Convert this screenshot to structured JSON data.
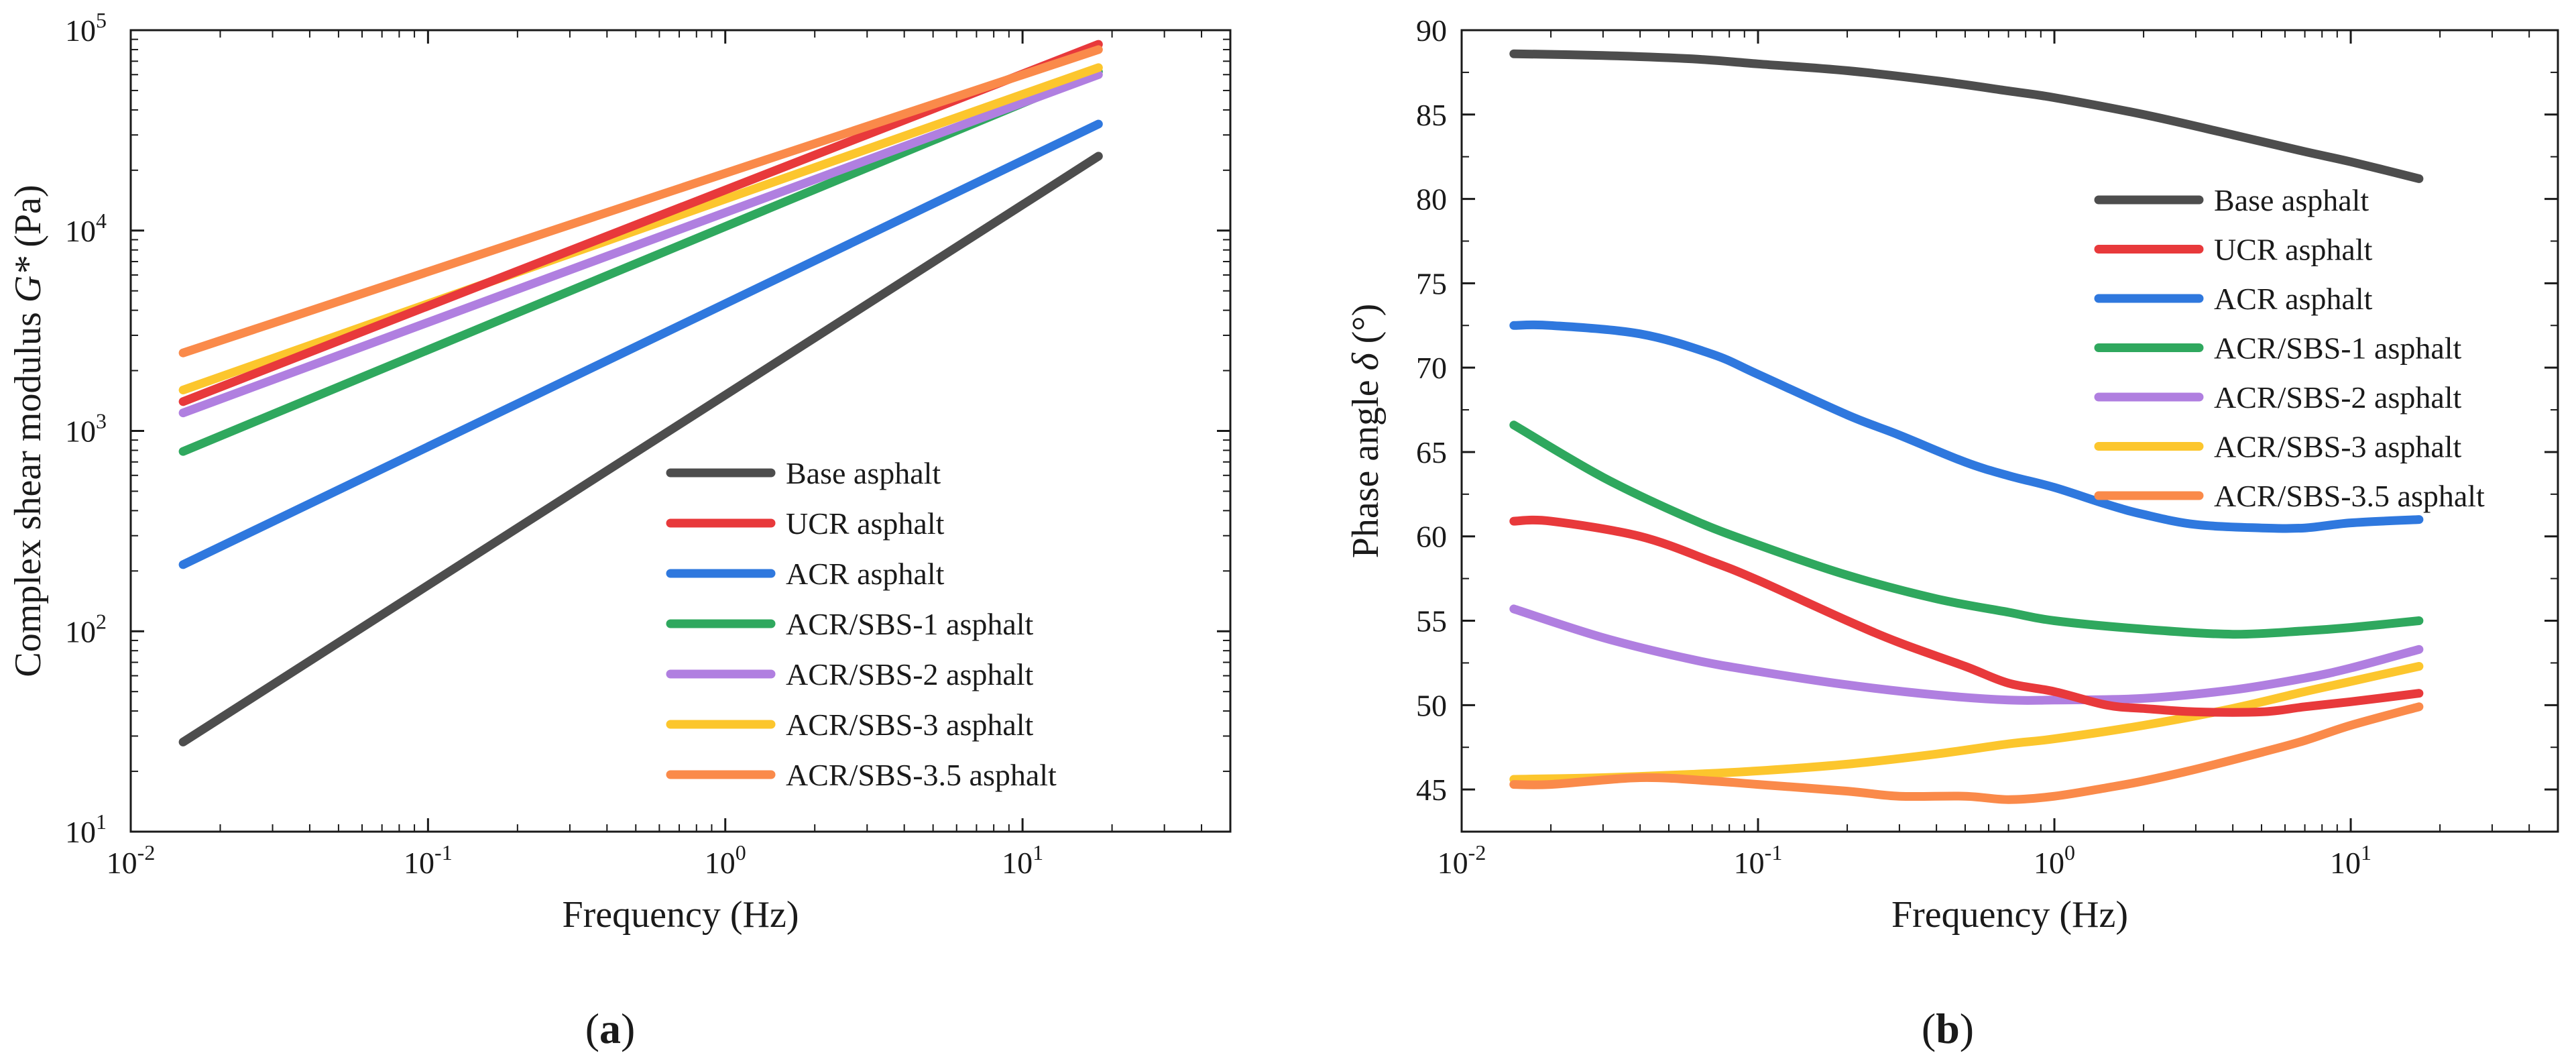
{
  "chart_data": [
    {
      "type": "line",
      "panel_label": "(a)",
      "panel_letter": "a",
      "xlabel": "Frequency (Hz)",
      "ylabel": "Complex shear modulus G* (Pa)",
      "ylabel_parts": [
        "Complex shear modulus ",
        "G*",
        " (Pa)"
      ],
      "x_scale": "log",
      "y_scale": "log",
      "xlim": [
        0.01,
        50
      ],
      "ylim": [
        10,
        100000
      ],
      "x_ticks": [
        {
          "value": 0.01,
          "base": "10",
          "exp": "-2"
        },
        {
          "value": 0.1,
          "base": "10",
          "exp": "-1"
        },
        {
          "value": 1,
          "base": "10",
          "exp": "0"
        },
        {
          "value": 10,
          "base": "10",
          "exp": "1"
        }
      ],
      "y_ticks": [
        {
          "value": 10,
          "base": "10",
          "exp": "1"
        },
        {
          "value": 100,
          "base": "10",
          "exp": "2"
        },
        {
          "value": 1000,
          "base": "10",
          "exp": "3"
        },
        {
          "value": 10000,
          "base": "10",
          "exp": "4"
        },
        {
          "value": 100000,
          "base": "10",
          "exp": "5"
        }
      ],
      "grid": false,
      "legend_position": "bottom-right",
      "series": [
        {
          "name": "Base asphalt",
          "color": "#4d4d4d",
          "x": [
            0.015,
            18
          ],
          "y": [
            28,
            23500
          ]
        },
        {
          "name": "UCR asphalt",
          "color": "#e8393b",
          "x": [
            0.015,
            18
          ],
          "y": [
            1400,
            85000
          ]
        },
        {
          "name": "ACR asphalt",
          "color": "#2f78de",
          "x": [
            0.015,
            18
          ],
          "y": [
            215,
            34000
          ]
        },
        {
          "name": "ACR/SBS-1 asphalt",
          "color": "#2fa85e",
          "x": [
            0.015,
            18
          ],
          "y": [
            790,
            62000
          ]
        },
        {
          "name": "ACR/SBS-2 asphalt",
          "color": "#b07fe0",
          "x": [
            0.015,
            18
          ],
          "y": [
            1230,
            60000
          ]
        },
        {
          "name": "ACR/SBS-3 asphalt",
          "color": "#fcc62d",
          "x": [
            0.015,
            18
          ],
          "y": [
            1600,
            65000
          ]
        },
        {
          "name": "ACR/SBS-3.5 asphalt",
          "color": "#fa8a4a",
          "x": [
            0.015,
            18
          ],
          "y": [
            2450,
            80000
          ]
        }
      ]
    },
    {
      "type": "line",
      "panel_label": "(b)",
      "panel_letter": "b",
      "xlabel": "Frequency (Hz)",
      "ylabel": "Phase angle δ (°)",
      "ylabel_parts": [
        "Phase angle ",
        "δ",
        " (°)"
      ],
      "x_scale": "log",
      "y_scale": "linear",
      "xlim": [
        0.01,
        50
      ],
      "ylim": [
        42.5,
        90
      ],
      "x_ticks": [
        {
          "value": 0.01,
          "base": "10",
          "exp": "-2"
        },
        {
          "value": 0.1,
          "base": "10",
          "exp": "-1"
        },
        {
          "value": 1,
          "base": "10",
          "exp": "0"
        },
        {
          "value": 10,
          "base": "10",
          "exp": "1"
        }
      ],
      "y_ticks": [
        {
          "value": 45,
          "label": "45"
        },
        {
          "value": 50,
          "label": "50"
        },
        {
          "value": 55,
          "label": "55"
        },
        {
          "value": 60,
          "label": "60"
        },
        {
          "value": 65,
          "label": "65"
        },
        {
          "value": 70,
          "label": "70"
        },
        {
          "value": 75,
          "label": "75"
        },
        {
          "value": 80,
          "label": "80"
        },
        {
          "value": 85,
          "label": "85"
        },
        {
          "value": 90,
          "label": "90"
        }
      ],
      "grid": false,
      "legend_position": "top-right",
      "series": [
        {
          "name": "Base asphalt",
          "color": "#4d4d4d",
          "x": [
            0.015,
            0.03,
            0.06,
            0.1,
            0.2,
            0.4,
            0.7,
            1.0,
            2.0,
            4.0,
            7.0,
            10.0,
            17.0
          ],
          "y": [
            88.6,
            88.5,
            88.3,
            88.0,
            87.6,
            87.0,
            86.4,
            86.0,
            85.0,
            83.8,
            82.8,
            82.2,
            81.2
          ]
        },
        {
          "name": "UCR asphalt",
          "color": "#e8393b",
          "x": [
            0.015,
            0.02,
            0.04,
            0.07,
            0.1,
            0.2,
            0.3,
            0.5,
            0.7,
            1.0,
            1.5,
            2.0,
            3.0,
            5.0,
            7.0,
            10.0,
            17.0
          ],
          "y": [
            60.9,
            60.9,
            60.0,
            58.5,
            57.4,
            55.0,
            53.7,
            52.3,
            51.3,
            50.8,
            50.0,
            49.8,
            49.6,
            49.6,
            49.9,
            50.2,
            50.7
          ]
        },
        {
          "name": "ACR asphalt",
          "color": "#2f78de",
          "x": [
            0.015,
            0.02,
            0.04,
            0.07,
            0.1,
            0.2,
            0.3,
            0.5,
            0.7,
            1.0,
            1.5,
            2.0,
            3.0,
            5.0,
            7.0,
            10.0,
            17.0
          ],
          "y": [
            72.5,
            72.5,
            72.0,
            70.8,
            69.6,
            67.2,
            66.0,
            64.4,
            63.6,
            62.9,
            61.9,
            61.3,
            60.7,
            60.5,
            60.5,
            60.8,
            61.0
          ]
        },
        {
          "name": "ACR/SBS-1 asphalt",
          "color": "#2fa85e",
          "x": [
            0.015,
            0.03,
            0.06,
            0.1,
            0.2,
            0.4,
            0.7,
            1.0,
            2.0,
            4.0,
            7.0,
            10.0,
            17.0
          ],
          "y": [
            66.6,
            63.5,
            61.0,
            59.5,
            57.7,
            56.3,
            55.5,
            55.0,
            54.5,
            54.2,
            54.4,
            54.6,
            55.0
          ]
        },
        {
          "name": "ACR/SBS-2 asphalt",
          "color": "#b07fe0",
          "x": [
            0.015,
            0.03,
            0.06,
            0.1,
            0.2,
            0.4,
            0.7,
            1.0,
            2.0,
            4.0,
            7.0,
            10.0,
            17.0
          ],
          "y": [
            55.7,
            54.0,
            52.7,
            52.0,
            51.2,
            50.6,
            50.3,
            50.3,
            50.4,
            50.9,
            51.6,
            52.2,
            53.3
          ]
        },
        {
          "name": "ACR/SBS-3 asphalt",
          "color": "#fcc62d",
          "x": [
            0.015,
            0.03,
            0.06,
            0.1,
            0.2,
            0.4,
            0.7,
            1.0,
            2.0,
            4.0,
            7.0,
            10.0,
            17.0
          ],
          "y": [
            45.6,
            45.7,
            45.9,
            46.1,
            46.5,
            47.1,
            47.7,
            48.0,
            48.8,
            49.8,
            50.8,
            51.4,
            52.3
          ]
        },
        {
          "name": "ACR/SBS-3.5 asphalt",
          "color": "#fa8a4a",
          "x": [
            0.015,
            0.02,
            0.04,
            0.07,
            0.1,
            0.2,
            0.3,
            0.5,
            0.7,
            1.0,
            1.5,
            2.0,
            3.0,
            5.0,
            7.0,
            10.0,
            17.0
          ],
          "y": [
            45.3,
            45.3,
            45.7,
            45.5,
            45.3,
            44.9,
            44.6,
            44.6,
            44.4,
            44.6,
            45.1,
            45.5,
            46.2,
            47.2,
            47.9,
            48.8,
            49.9
          ]
        }
      ]
    }
  ]
}
